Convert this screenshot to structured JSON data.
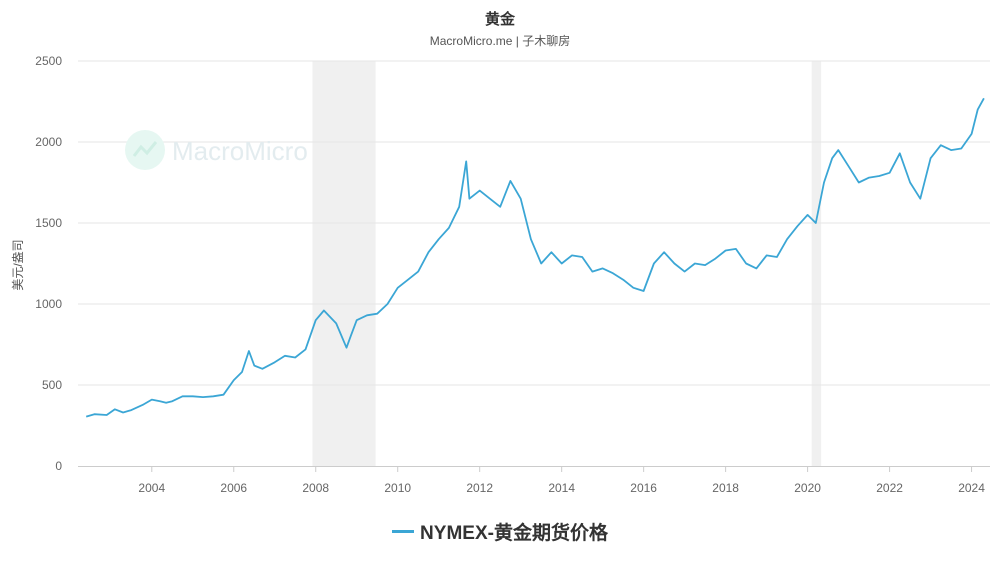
{
  "chart_data": {
    "type": "line",
    "title": "黄金",
    "subtitle": "MacroMicro.me | 子木聊房",
    "watermark": "MacroMicro",
    "ylabel": "美元/盎司",
    "xlim": [
      2002.2,
      2024.45
    ],
    "ylim": [
      0,
      2500
    ],
    "x_ticks": [
      "2004",
      "2006",
      "2008",
      "2010",
      "2012",
      "2014",
      "2016",
      "2018",
      "2020",
      "2022",
      "2024"
    ],
    "y_ticks": [
      "0",
      "500",
      "1000",
      "1500",
      "2000",
      "2500"
    ],
    "grid": true,
    "legend_position": "bottom",
    "shaded_periods": [
      [
        2007.92,
        2009.46
      ],
      [
        2020.1,
        2020.33
      ]
    ],
    "series": [
      {
        "name": "NYMEX-黄金期货价格",
        "color": "#3ba6d5",
        "x": [
          2002.4,
          2002.6,
          2002.9,
          2003.1,
          2003.3,
          2003.5,
          2003.8,
          2004.0,
          2004.2,
          2004.35,
          2004.5,
          2004.75,
          2005.0,
          2005.25,
          2005.5,
          2005.75,
          2006.0,
          2006.2,
          2006.37,
          2006.5,
          2006.7,
          2007.0,
          2007.25,
          2007.5,
          2007.75,
          2008.0,
          2008.2,
          2008.5,
          2008.75,
          2008.85,
          2009.0,
          2009.25,
          2009.5,
          2009.75,
          2010.0,
          2010.25,
          2010.5,
          2010.75,
          2011.0,
          2011.25,
          2011.5,
          2011.67,
          2011.75,
          2012.0,
          2012.25,
          2012.5,
          2012.75,
          2013.0,
          2013.25,
          2013.5,
          2013.75,
          2014.0,
          2014.25,
          2014.5,
          2014.75,
          2015.0,
          2015.25,
          2015.5,
          2015.75,
          2016.0,
          2016.25,
          2016.5,
          2016.75,
          2017.0,
          2017.25,
          2017.5,
          2017.75,
          2018.0,
          2018.25,
          2018.5,
          2018.75,
          2019.0,
          2019.25,
          2019.5,
          2019.75,
          2020.0,
          2020.2,
          2020.4,
          2020.6,
          2020.75,
          2021.0,
          2021.25,
          2021.5,
          2021.75,
          2022.0,
          2022.25,
          2022.5,
          2022.75,
          2023.0,
          2023.25,
          2023.5,
          2023.75,
          2024.0,
          2024.15,
          2024.3
        ],
        "values": [
          305,
          320,
          315,
          350,
          330,
          345,
          380,
          410,
          400,
          390,
          400,
          430,
          430,
          425,
          430,
          440,
          530,
          580,
          710,
          620,
          600,
          640,
          680,
          670,
          720,
          900,
          960,
          880,
          730,
          800,
          900,
          930,
          940,
          1000,
          1100,
          1150,
          1200,
          1320,
          1400,
          1470,
          1600,
          1880,
          1650,
          1700,
          1650,
          1600,
          1760,
          1650,
          1400,
          1250,
          1320,
          1250,
          1300,
          1290,
          1200,
          1220,
          1190,
          1150,
          1100,
          1080,
          1250,
          1320,
          1250,
          1200,
          1250,
          1240,
          1280,
          1330,
          1340,
          1250,
          1220,
          1300,
          1290,
          1400,
          1480,
          1550,
          1500,
          1750,
          1900,
          1950,
          1850,
          1750,
          1780,
          1790,
          1810,
          1930,
          1750,
          1650,
          1900,
          1980,
          1950,
          1960,
          2050,
          2200,
          2270
        ]
      }
    ]
  }
}
